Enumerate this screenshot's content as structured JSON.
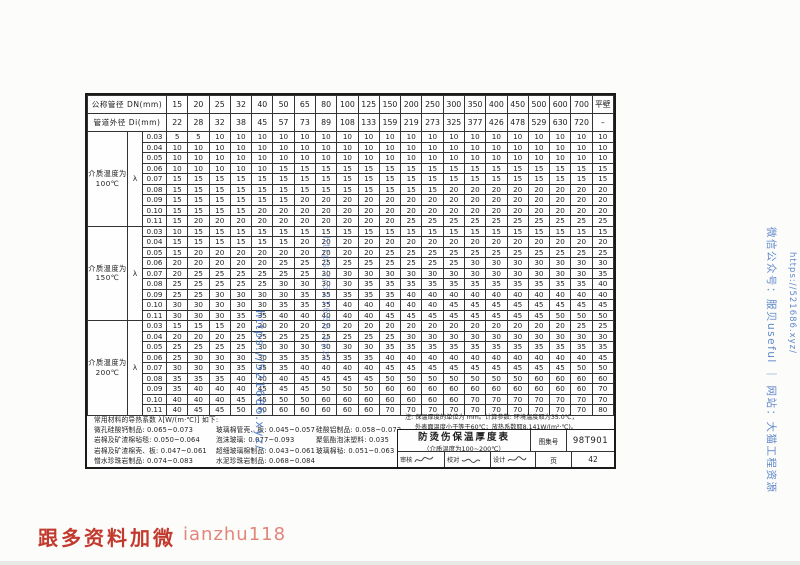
{
  "table": {
    "header_dn_label": "公称管径 DN(mm)",
    "header_di_label": "管道外径 Di(mm)",
    "columns_dn": [
      "15",
      "20",
      "25",
      "32",
      "40",
      "50",
      "65",
      "80",
      "100",
      "125",
      "150",
      "200",
      "250",
      "300",
      "350",
      "400",
      "450",
      "500",
      "600",
      "700",
      "平壁"
    ],
    "columns_di": [
      "22",
      "28",
      "32",
      "38",
      "45",
      "57",
      "73",
      "89",
      "108",
      "133",
      "159",
      "219",
      "273",
      "325",
      "377",
      "426",
      "478",
      "529",
      "630",
      "720",
      "–"
    ],
    "lambda_symbol": "λ",
    "sections": [
      {
        "label_line1": "介质温度为",
        "label_line2": "100℃",
        "rows": [
          {
            "lambda": "0.03",
            "values": [
              5,
              5,
              10,
              10,
              10,
              10,
              10,
              10,
              10,
              10,
              10,
              10,
              10,
              10,
              10,
              10,
              10,
              10,
              10,
              10,
              10
            ]
          },
          {
            "lambda": "0.04",
            "values": [
              10,
              10,
              10,
              10,
              10,
              10,
              10,
              10,
              10,
              10,
              10,
              10,
              10,
              10,
              10,
              10,
              10,
              10,
              10,
              10,
              10
            ]
          },
          {
            "lambda": "0.05",
            "values": [
              10,
              10,
              10,
              10,
              10,
              10,
              10,
              10,
              10,
              10,
              10,
              10,
              10,
              10,
              10,
              10,
              10,
              10,
              10,
              10,
              10
            ]
          },
          {
            "lambda": "0.06",
            "values": [
              10,
              10,
              10,
              10,
              10,
              15,
              15,
              15,
              15,
              15,
              15,
              15,
              15,
              15,
              15,
              15,
              15,
              15,
              15,
              15,
              15
            ]
          },
          {
            "lambda": "0.07",
            "values": [
              15,
              15,
              15,
              15,
              15,
              15,
              15,
              15,
              15,
              15,
              15,
              15,
              15,
              15,
              15,
              15,
              15,
              15,
              15,
              15,
              15
            ]
          },
          {
            "lambda": "0.08",
            "values": [
              15,
              15,
              15,
              15,
              15,
              15,
              15,
              15,
              15,
              15,
              15,
              15,
              15,
              20,
              20,
              20,
              20,
              20,
              20,
              20,
              20
            ]
          },
          {
            "lambda": "0.09",
            "values": [
              15,
              15,
              15,
              15,
              15,
              15,
              20,
              20,
              20,
              20,
              20,
              20,
              20,
              20,
              20,
              20,
              20,
              20,
              20,
              20,
              20
            ]
          },
          {
            "lambda": "0.10",
            "values": [
              15,
              15,
              15,
              15,
              20,
              20,
              20,
              20,
              20,
              20,
              20,
              20,
              20,
              20,
              20,
              20,
              20,
              20,
              20,
              20,
              20
            ]
          },
          {
            "lambda": "0.11",
            "values": [
              15,
              20,
              20,
              20,
              20,
              20,
              20,
              20,
              20,
              20,
              20,
              25,
              25,
              25,
              25,
              25,
              25,
              25,
              25,
              25,
              25
            ]
          }
        ]
      },
      {
        "label_line1": "介质温度为",
        "label_line2": "150℃",
        "rows": [
          {
            "lambda": "0.03",
            "values": [
              10,
              15,
              15,
              15,
              15,
              15,
              15,
              15,
              15,
              15,
              15,
              15,
              15,
              15,
              15,
              15,
              15,
              15,
              15,
              15,
              15
            ]
          },
          {
            "lambda": "0.04",
            "values": [
              15,
              15,
              15,
              15,
              15,
              15,
              20,
              20,
              20,
              20,
              20,
              20,
              20,
              20,
              20,
              20,
              20,
              20,
              20,
              20,
              20
            ]
          },
          {
            "lambda": "0.05",
            "values": [
              15,
              20,
              20,
              20,
              20,
              20,
              20,
              20,
              20,
              20,
              25,
              25,
              25,
              25,
              25,
              25,
              25,
              25,
              25,
              25,
              25
            ]
          },
          {
            "lambda": "0.06",
            "values": [
              20,
              20,
              20,
              20,
              20,
              25,
              25,
              25,
              25,
              25,
              25,
              25,
              25,
              25,
              30,
              30,
              30,
              30,
              30,
              30,
              30
            ]
          },
          {
            "lambda": "0.07",
            "values": [
              20,
              25,
              25,
              25,
              25,
              25,
              25,
              30,
              30,
              30,
              30,
              30,
              30,
              30,
              30,
              30,
              30,
              30,
              30,
              30,
              35
            ]
          },
          {
            "lambda": "0.08",
            "values": [
              25,
              25,
              25,
              25,
              25,
              30,
              30,
              30,
              30,
              35,
              35,
              35,
              35,
              35,
              35,
              35,
              35,
              35,
              35,
              35,
              40
            ]
          },
          {
            "lambda": "0.09",
            "values": [
              25,
              25,
              30,
              30,
              30,
              30,
              35,
              35,
              35,
              35,
              35,
              40,
              40,
              40,
              40,
              40,
              40,
              40,
              40,
              40,
              40
            ]
          },
          {
            "lambda": "0.10",
            "values": [
              30,
              30,
              30,
              30,
              30,
              35,
              35,
              35,
              40,
              40,
              40,
              40,
              40,
              45,
              45,
              45,
              45,
              45,
              45,
              45,
              45
            ]
          },
          {
            "lambda": "0.11",
            "values": [
              30,
              30,
              30,
              35,
              35,
              40,
              40,
              40,
              40,
              40,
              45,
              45,
              45,
              45,
              45,
              45,
              45,
              45,
              50,
              50,
              50
            ]
          }
        ]
      },
      {
        "label_line1": "介质温度为",
        "label_line2": "200℃",
        "rows": [
          {
            "lambda": "0.03",
            "values": [
              15,
              15,
              15,
              20,
              20,
              20,
              20,
              20,
              20,
              20,
              20,
              20,
              20,
              20,
              20,
              20,
              20,
              20,
              20,
              25,
              25
            ]
          },
          {
            "lambda": "0.04",
            "values": [
              20,
              20,
              20,
              25,
              25,
              25,
              25,
              25,
              25,
              25,
              25,
              30,
              30,
              30,
              30,
              30,
              30,
              30,
              30,
              30,
              30
            ]
          },
          {
            "lambda": "0.05",
            "values": [
              25,
              25,
              25,
              25,
              30,
              30,
              30,
              30,
              30,
              30,
              35,
              35,
              35,
              35,
              35,
              35,
              35,
              35,
              35,
              35,
              35
            ]
          },
          {
            "lambda": "0.06",
            "values": [
              25,
              30,
              30,
              30,
              30,
              35,
              35,
              35,
              35,
              35,
              40,
              40,
              40,
              40,
              40,
              40,
              40,
              40,
              40,
              40,
              45
            ]
          },
          {
            "lambda": "0.07",
            "values": [
              30,
              30,
              30,
              35,
              35,
              35,
              40,
              40,
              40,
              40,
              45,
              45,
              45,
              45,
              45,
              45,
              45,
              45,
              45,
              50,
              50
            ]
          },
          {
            "lambda": "0.08",
            "values": [
              35,
              35,
              35,
              40,
              40,
              40,
              45,
              45,
              45,
              45,
              50,
              50,
              50,
              50,
              50,
              50,
              50,
              60,
              60,
              60,
              60
            ]
          },
          {
            "lambda": "0.09",
            "values": [
              35,
              40,
              40,
              40,
              45,
              45,
              45,
              50,
              50,
              50,
              60,
              60,
              60,
              60,
              60,
              60,
              60,
              60,
              60,
              60,
              70
            ]
          },
          {
            "lambda": "0.10",
            "values": [
              40,
              40,
              40,
              45,
              45,
              50,
              50,
              60,
              60,
              60,
              60,
              60,
              60,
              60,
              70,
              70,
              70,
              70,
              70,
              70,
              70
            ]
          },
          {
            "lambda": "0.11",
            "values": [
              40,
              45,
              45,
              50,
              50,
              60,
              60,
              60,
              60,
              60,
              70,
              70,
              70,
              70,
              70,
              70,
              70,
              70,
              70,
              70,
              80
            ]
          }
        ]
      }
    ]
  },
  "notes_left": {
    "title": "常用材料的导热系数 λ[W/(m·℃)] 如下:",
    "rows": [
      [
        "微孔硅酸钙制品: 0.065~0.073",
        "玻璃棉管壳、板: 0.045~0.057",
        "硅酸铝制品: 0.058~0.073"
      ],
      [
        "岩棉及矿渣棉毡毯: 0.050~0.064",
        "泡沫玻璃: 0.077~0.093",
        "聚氨酯泡沫塑料: 0.035"
      ],
      [
        "岩棉及矿渣棉壳、板: 0.047~0.061",
        "超细玻璃棉制品: 0.043~0.061",
        "玻璃棉毡: 0.051~0.063"
      ],
      [
        "憎水珍珠岩制品: 0.074~0.083",
        "水泥珍珠岩制品: 0.068~0.084",
        ""
      ]
    ]
  },
  "notes_right": {
    "line1": "注: 保温厚度的单位为 mm。计算参数: 环境温度取为35.0℃；",
    "line2": "外表面温度小于等于60℃；放热系数取8.141W/(m²·℃)。"
  },
  "title_block": {
    "title": "防烫伤保温厚度表",
    "subtitle": "（介质温度为100~200℃）",
    "atlas_label": "图集号",
    "atlas_no": "98T901",
    "review_label": "审核",
    "proof_label": "校对",
    "design_label": "设计",
    "page_label": "页",
    "page_no": "42"
  },
  "watermarks": {
    "right1": "微信公众号：服贝useful ｜ 网站：大猫工程资源",
    "right2": "https://521686.xyz/",
    "mid1": "https://521686.xyz/",
    "mid2": "https://521686.xyz/",
    "blue": "#3468be"
  },
  "footer": {
    "promo": "跟多资料加微",
    "contact_id": "ianzhu118"
  }
}
